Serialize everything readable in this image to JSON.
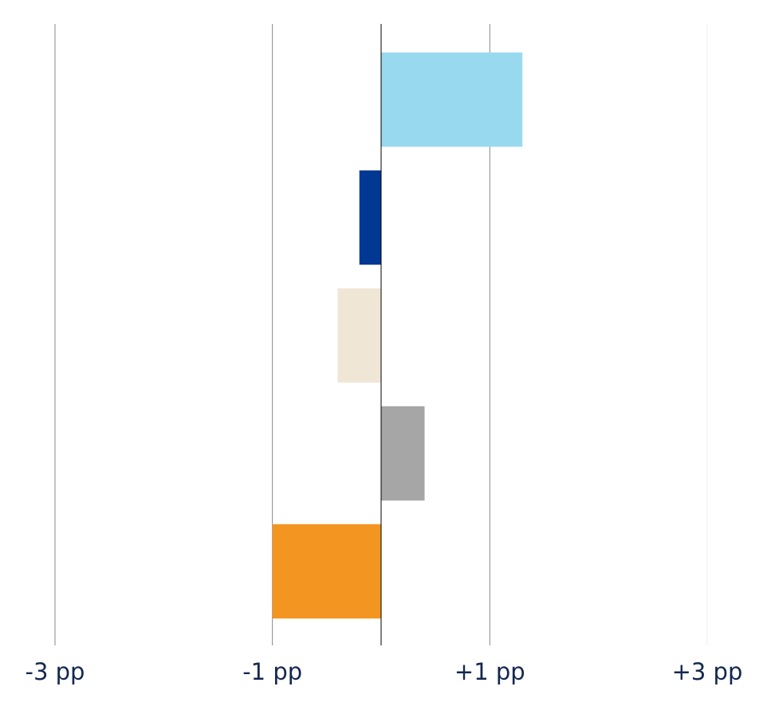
{
  "chart_data": {
    "type": "hbar",
    "categories": [
      null,
      null,
      null,
      null,
      null
    ],
    "values": [
      1.3,
      -0.2,
      -0.4,
      0.4,
      -1.0
    ],
    "colors": [
      "#99d9f0",
      "#003893",
      "#f0e6d6",
      "#a6a6a6",
      "#f39521"
    ],
    "xlim": [
      -3,
      3
    ],
    "xticks": [
      {
        "value": -3,
        "label": "-3 pp"
      },
      {
        "value": -1,
        "label": "-1 pp"
      },
      {
        "value": 1,
        "label": "+1 pp"
      },
      {
        "value": 3,
        "label": "+3 pp"
      }
    ],
    "grid": true
  }
}
